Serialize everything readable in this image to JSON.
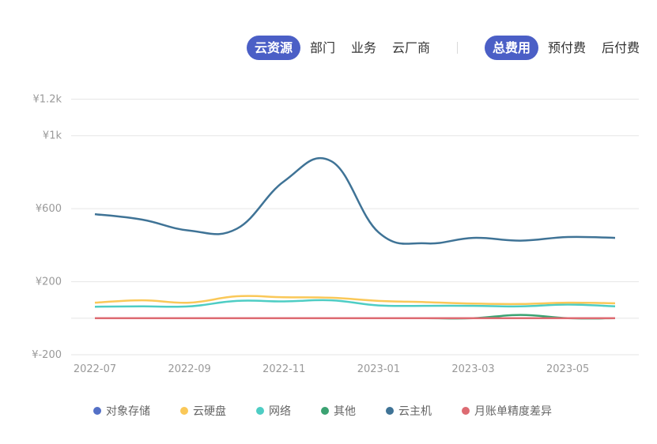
{
  "tabs_left": [
    {
      "label": "云资源",
      "active": true
    },
    {
      "label": "部门",
      "active": false
    },
    {
      "label": "业务",
      "active": false
    },
    {
      "label": "云厂商",
      "active": false
    }
  ],
  "tabs_right": [
    {
      "label": "总费用",
      "active": true
    },
    {
      "label": "预付费",
      "active": false
    },
    {
      "label": "后付费",
      "active": false
    }
  ],
  "chart_data": {
    "type": "line",
    "x": [
      "2022-07",
      "2022-08",
      "2022-09",
      "2022-10",
      "2022-11",
      "2022-12",
      "2023-01",
      "2023-02",
      "2023-03",
      "2023-04",
      "2023-05",
      "2023-06"
    ],
    "x_tick_labels": [
      "2022-07",
      "",
      "2022-09",
      "",
      "2022-11",
      "",
      "2023-01",
      "",
      "2023-03",
      "",
      "2023-05",
      ""
    ],
    "y_ticks": [
      {
        "value": -200,
        "label": "¥-200"
      },
      {
        "value": 200,
        "label": "¥200"
      },
      {
        "value": 600,
        "label": "¥600"
      },
      {
        "value": 1000,
        "label": "¥1k"
      },
      {
        "value": 1200,
        "label": "¥1.2k"
      }
    ],
    "ylim": [
      -200,
      1200
    ],
    "grid": true,
    "legend_position": "bottom",
    "series": [
      {
        "name": "对象存储",
        "color": "#5470c6",
        "values": [
          0,
          0,
          0,
          0,
          0,
          0,
          0,
          0,
          0,
          0,
          0,
          0
        ]
      },
      {
        "name": "云硬盘",
        "color": "#fac858",
        "values": [
          85,
          98,
          85,
          120,
          115,
          112,
          95,
          88,
          80,
          78,
          85,
          82
        ]
      },
      {
        "name": "网络",
        "color": "#4ecdc4",
        "values": [
          63,
          65,
          65,
          95,
          92,
          98,
          70,
          68,
          68,
          65,
          75,
          65
        ]
      },
      {
        "name": "其他",
        "color": "#3ba272",
        "values": [
          0,
          0,
          0,
          0,
          0,
          0,
          0,
          0,
          0,
          18,
          0,
          0
        ]
      },
      {
        "name": "云主机",
        "color": "#3f7396",
        "values": [
          570,
          540,
          480,
          490,
          750,
          860,
          470,
          410,
          440,
          425,
          445,
          440
        ]
      },
      {
        "name": "月账单精度差异",
        "color": "#dd6b72",
        "values": [
          0,
          0,
          0,
          0,
          0,
          0,
          0,
          0,
          0,
          0,
          0,
          0
        ]
      }
    ]
  }
}
